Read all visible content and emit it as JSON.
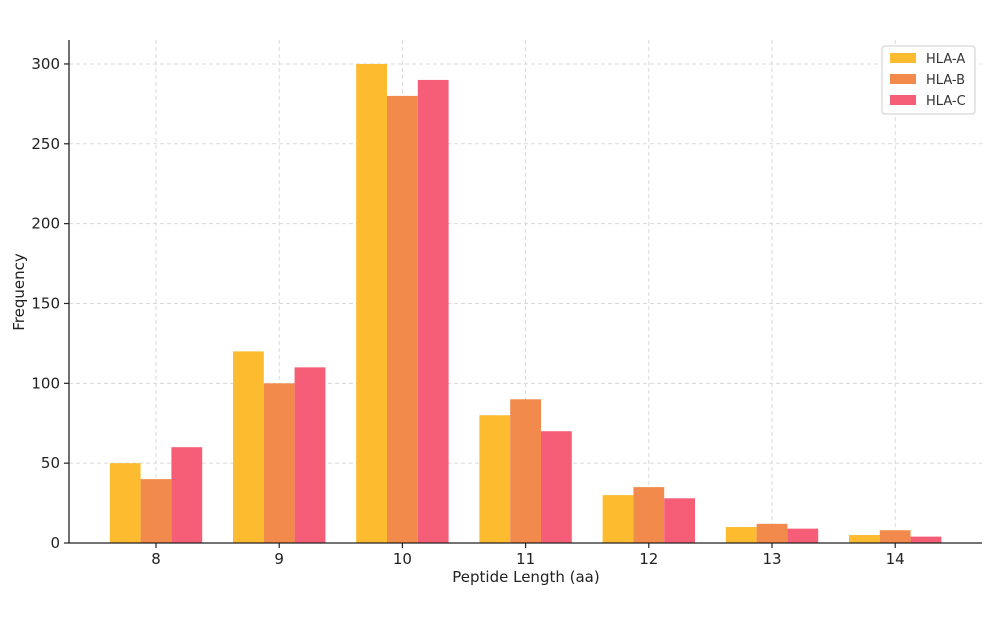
{
  "chart_data": {
    "type": "bar",
    "title": "",
    "xlabel": "Peptide Length (aa)",
    "ylabel": "Frequency",
    "categories": [
      "8",
      "9",
      "10",
      "11",
      "12",
      "13",
      "14"
    ],
    "series": [
      {
        "name": "HLA-A",
        "color": "#FDBB2F",
        "values": [
          50,
          120,
          300,
          80,
          30,
          10,
          5
        ]
      },
      {
        "name": "HLA-B",
        "color": "#F28A4C",
        "values": [
          40,
          100,
          280,
          90,
          35,
          12,
          8
        ]
      },
      {
        "name": "HLA-C",
        "color": "#F65E77",
        "values": [
          60,
          110,
          290,
          70,
          28,
          9,
          4
        ]
      }
    ],
    "ylim": [
      0,
      315
    ],
    "yticks": [
      0,
      50,
      100,
      150,
      200,
      250,
      300
    ],
    "grid": true,
    "legend_position": "top-right"
  }
}
